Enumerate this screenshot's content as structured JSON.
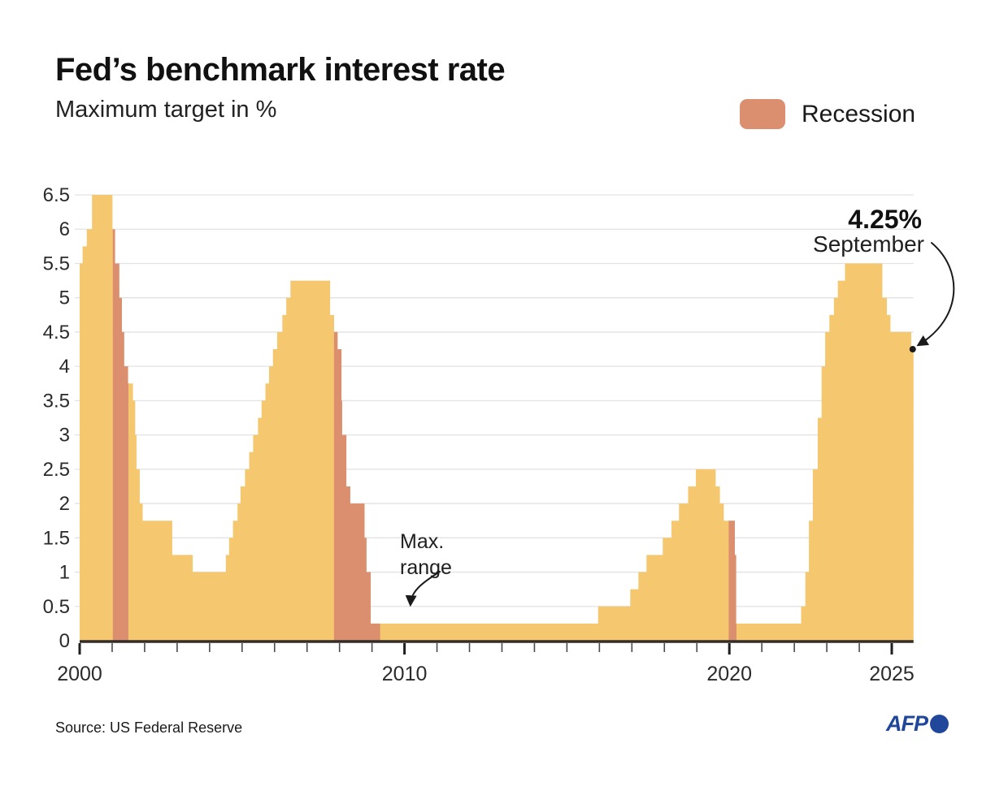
{
  "header": {
    "title": "Fed’s benchmark interest rate",
    "subtitle": "Maximum target in %"
  },
  "legend": {
    "label": "Recession",
    "color": "#DB8F6E"
  },
  "annotations": {
    "latest": {
      "value": "4.25%",
      "month": "September"
    },
    "max_range": {
      "line1": "Max.",
      "line2": "range"
    }
  },
  "footer": {
    "source": "Source: US Federal Reserve",
    "logo": "AFP"
  },
  "chart_data": {
    "type": "area",
    "title": "Fed’s benchmark interest rate",
    "subtitle": "Maximum target in %",
    "series_name": "Fed benchmark interest rate, maximum target (%)",
    "x_range": [
      2000,
      2025.67
    ],
    "y_range": [
      0,
      6.5
    ],
    "grid": "horizontal",
    "legend_position": "top-right",
    "y_ticks": [
      0,
      0.5,
      1,
      1.5,
      2,
      2.5,
      3,
      3.5,
      4,
      4.5,
      5,
      5.5,
      6,
      6.5
    ],
    "x_tick_labels": [
      {
        "year": 2000,
        "label": "2000"
      },
      {
        "year": 2010,
        "label": "2010"
      },
      {
        "year": 2020,
        "label": "2020"
      },
      {
        "year": 2025,
        "label": "2025"
      }
    ],
    "steps": [
      [
        2000.0,
        5.5
      ],
      [
        2000.09,
        5.75
      ],
      [
        2000.22,
        6.0
      ],
      [
        2000.38,
        6.5
      ],
      [
        2001.01,
        6.0
      ],
      [
        2001.09,
        5.5
      ],
      [
        2001.22,
        5.0
      ],
      [
        2001.3,
        4.5
      ],
      [
        2001.37,
        4.0
      ],
      [
        2001.49,
        3.75
      ],
      [
        2001.64,
        3.5
      ],
      [
        2001.71,
        3.0
      ],
      [
        2001.75,
        2.5
      ],
      [
        2001.85,
        2.0
      ],
      [
        2001.94,
        1.75
      ],
      [
        2002.85,
        1.25
      ],
      [
        2003.48,
        1.0
      ],
      [
        2004.5,
        1.25
      ],
      [
        2004.6,
        1.5
      ],
      [
        2004.72,
        1.75
      ],
      [
        2004.86,
        2.0
      ],
      [
        2004.95,
        2.25
      ],
      [
        2005.09,
        2.5
      ],
      [
        2005.22,
        2.75
      ],
      [
        2005.34,
        3.0
      ],
      [
        2005.49,
        3.25
      ],
      [
        2005.6,
        3.5
      ],
      [
        2005.72,
        3.75
      ],
      [
        2005.83,
        4.0
      ],
      [
        2005.95,
        4.25
      ],
      [
        2006.08,
        4.5
      ],
      [
        2006.24,
        4.75
      ],
      [
        2006.36,
        5.0
      ],
      [
        2006.49,
        5.25
      ],
      [
        2007.71,
        4.75
      ],
      [
        2007.83,
        4.5
      ],
      [
        2007.94,
        4.25
      ],
      [
        2008.06,
        3.5
      ],
      [
        2008.08,
        3.0
      ],
      [
        2008.21,
        2.25
      ],
      [
        2008.33,
        2.0
      ],
      [
        2008.77,
        1.5
      ],
      [
        2008.83,
        1.0
      ],
      [
        2008.96,
        0.25
      ],
      [
        2015.96,
        0.5
      ],
      [
        2016.95,
        0.75
      ],
      [
        2017.2,
        1.0
      ],
      [
        2017.45,
        1.25
      ],
      [
        2017.95,
        1.5
      ],
      [
        2018.22,
        1.75
      ],
      [
        2018.45,
        2.0
      ],
      [
        2018.73,
        2.25
      ],
      [
        2018.97,
        2.5
      ],
      [
        2019.58,
        2.25
      ],
      [
        2019.71,
        2.0
      ],
      [
        2019.83,
        1.75
      ],
      [
        2020.17,
        1.25
      ],
      [
        2020.21,
        0.25
      ],
      [
        2022.21,
        0.5
      ],
      [
        2022.34,
        1.0
      ],
      [
        2022.45,
        1.75
      ],
      [
        2022.57,
        2.5
      ],
      [
        2022.72,
        3.25
      ],
      [
        2022.84,
        4.0
      ],
      [
        2022.95,
        4.5
      ],
      [
        2023.08,
        4.75
      ],
      [
        2023.22,
        5.0
      ],
      [
        2023.34,
        5.25
      ],
      [
        2023.56,
        5.5
      ],
      [
        2024.71,
        5.0
      ],
      [
        2024.85,
        4.75
      ],
      [
        2024.96,
        4.5
      ],
      [
        2025.6,
        4.25
      ]
    ],
    "end_x": 2025.67,
    "end_value": 4.25,
    "recessions": [
      [
        2001.02,
        2001.5
      ],
      [
        2007.83,
        2009.25
      ],
      [
        2019.98,
        2020.22
      ]
    ],
    "colors": {
      "area": "#F5C76F",
      "recession": "#DB8F6E",
      "grid": "#E2E2E2",
      "axis": "#332D28",
      "tick_minor": "#4a4a4a",
      "tick_major": "#1f1f1f"
    }
  }
}
